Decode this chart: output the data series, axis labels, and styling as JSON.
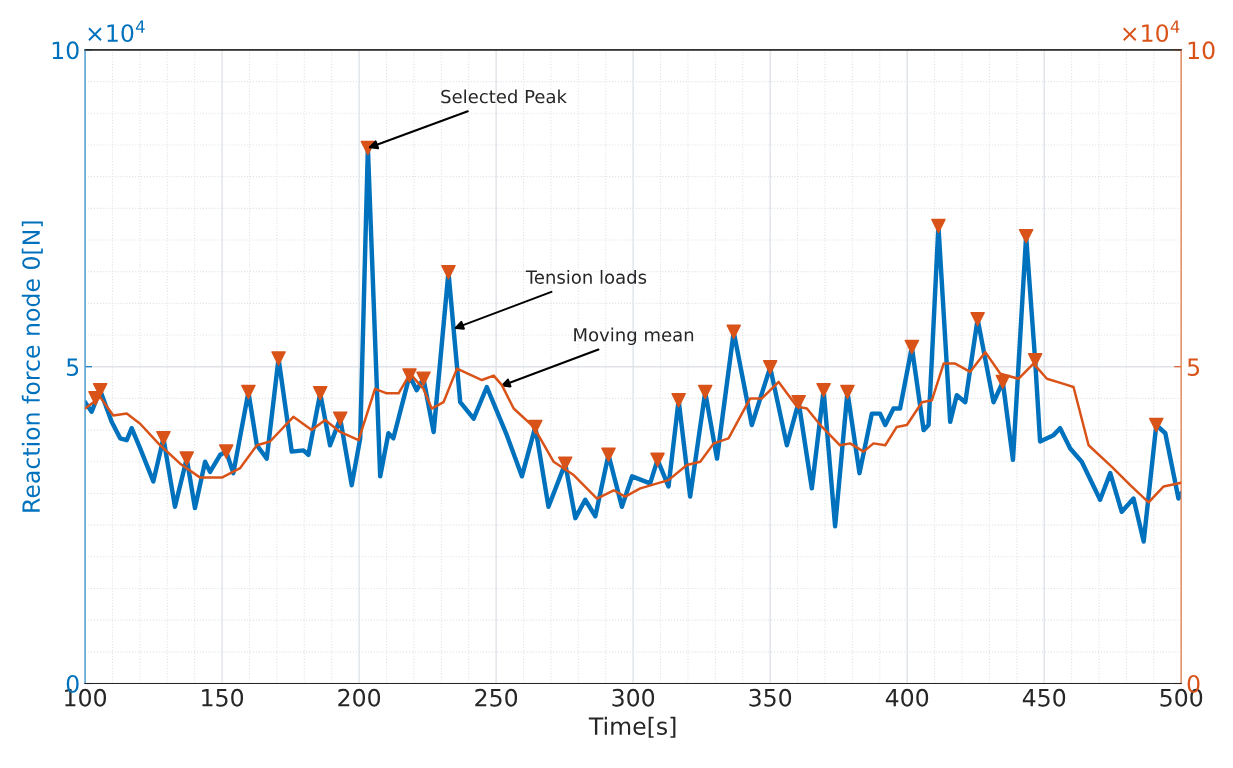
{
  "chart_data": {
    "type": "line",
    "xlabel": "Time[s]",
    "ylabel": "Reaction force node 0[N]",
    "xlim": [
      100,
      500
    ],
    "xticks": [
      100,
      150,
      200,
      250,
      300,
      350,
      400,
      450,
      500
    ],
    "ylim": [
      0,
      10
    ],
    "yticks": [
      0,
      5,
      10
    ],
    "y2lim": [
      0,
      10
    ],
    "y2ticks": [
      0,
      5,
      10
    ],
    "grid": true,
    "annotations": [
      "×10$^{4}$",
      "×10$^{4}$",
      {
        "text": "Selected Peak",
        "x": 203.2,
        "y": 8.45
      },
      {
        "text": "Tension loads",
        "x": 234.5,
        "y": 5.6
      },
      {
        "text": "Moving mean",
        "x": 251.5,
        "y": 4.69
      }
    ],
    "series": [
      {
        "color": "#0072bd",
        "x": [
          100,
          102.4,
          104.3,
          105.5,
          109.7,
          112.8,
          115.2,
          117.0,
          120.1,
          124.9,
          128.6,
          132.8,
          137.1,
          140.1,
          143.8,
          145.6,
          149.3,
          151.5,
          154.1,
          159.6,
          162.7,
          166.3,
          170.6,
          175.4,
          179.7,
          181.5,
          185.8,
          189.4,
          193.1,
          197.3,
          200.4,
          203.2,
          207.7,
          210.7,
          212.5,
          218.4,
          221.0,
          223.5,
          227.2,
          232.6,
          236.9,
          241.8,
          246.6,
          253.9,
          259.4,
          264.3,
          269.1,
          275.2,
          278.9,
          282.5,
          286.2,
          291.0,
          295.9,
          299.6,
          306.2,
          308.9,
          312.9,
          316.6,
          320.8,
          326.3,
          330.6,
          336.7,
          343.3,
          350.0,
          356.1,
          360.4,
          365.2,
          369.5,
          373.7,
          378.2,
          382.6,
          387.1,
          390.1,
          392.0,
          395.0,
          397.4,
          401.7,
          406.0,
          407.8,
          411.4,
          415.7,
          418.1,
          421.2,
          425.7,
          431.5,
          434.9,
          438.6,
          443.4,
          446.7,
          448.5,
          453.4,
          455.8,
          459.5,
          463.7,
          470.4,
          474.1,
          478.3,
          482.6,
          486.3,
          490.9,
          494.2,
          499.0,
          500
        ],
        "values": [
          4.44,
          4.29,
          4.5,
          4.63,
          4.13,
          3.87,
          3.84,
          4.03,
          3.71,
          3.19,
          3.87,
          2.79,
          3.55,
          2.77,
          3.5,
          3.34,
          3.61,
          3.66,
          3.32,
          4.6,
          3.76,
          3.55,
          5.13,
          3.66,
          3.68,
          3.61,
          4.58,
          3.76,
          4.18,
          3.13,
          3.87,
          8.45,
          3.27,
          3.95,
          3.87,
          4.86,
          4.63,
          4.81,
          3.97,
          6.49,
          4.44,
          4.18,
          4.68,
          3.92,
          3.27,
          4.05,
          2.79,
          3.47,
          2.61,
          2.9,
          2.64,
          3.61,
          2.79,
          3.27,
          3.16,
          3.53,
          3.11,
          4.47,
          2.95,
          4.6,
          3.55,
          5.55,
          4.08,
          4.99,
          3.76,
          4.44,
          3.08,
          4.63,
          2.48,
          4.6,
          3.32,
          4.26,
          4.26,
          4.08,
          4.34,
          4.34,
          5.31,
          4.0,
          4.08,
          7.22,
          4.13,
          4.55,
          4.44,
          5.75,
          4.44,
          4.76,
          3.53,
          7.06,
          5.1,
          3.82,
          3.92,
          4.03,
          3.71,
          3.5,
          2.9,
          3.32,
          2.71,
          2.92,
          2.24,
          4.08,
          3.95,
          2.92,
          3.0
        ]
      },
      {
        "color": "#d95319",
        "axis": "y2",
        "x": [
          100,
          105.5,
          110.3,
          115.2,
          120.1,
          127.4,
          134.7,
          142.0,
          149.9,
          156.6,
          162.7,
          167.5,
          176.0,
          182.7,
          187.6,
          193.1,
          199.8,
          205.8,
          210.1,
          214.4,
          218.6,
          223.5,
          226.5,
          230.8,
          235.7,
          244.8,
          249.1,
          252.1,
          256.4,
          263.7,
          271.0,
          278.3,
          286.8,
          292.9,
          297.1,
          302.6,
          312.9,
          319.6,
          324.5,
          329.4,
          334.8,
          342.7,
          347.0,
          353.1,
          359.8,
          363.4,
          368.3,
          375.5,
          379.2,
          384.1,
          387.7,
          392.0,
          396.2,
          399.9,
          405.4,
          409.0,
          413.3,
          417.5,
          423.0,
          428.5,
          434.0,
          440.6,
          446.1,
          451.0,
          457.1,
          460.7,
          466.2,
          474.7,
          481.4,
          488.1,
          493.6,
          500
        ],
        "values": [
          4.34,
          4.52,
          4.23,
          4.26,
          4.1,
          3.76,
          3.47,
          3.25,
          3.25,
          3.4,
          3.76,
          3.82,
          4.21,
          4.0,
          4.16,
          3.97,
          3.84,
          4.65,
          4.58,
          4.58,
          4.89,
          4.65,
          4.34,
          4.44,
          4.97,
          4.79,
          4.86,
          4.71,
          4.34,
          4.05,
          3.5,
          3.29,
          2.92,
          3.05,
          2.95,
          3.08,
          3.21,
          3.45,
          3.5,
          3.79,
          3.87,
          4.5,
          4.5,
          4.76,
          4.37,
          4.34,
          4.08,
          3.76,
          3.79,
          3.66,
          3.79,
          3.76,
          4.05,
          4.08,
          4.44,
          4.47,
          5.05,
          5.05,
          4.92,
          5.23,
          4.89,
          4.81,
          5.05,
          4.81,
          4.73,
          4.68,
          3.76,
          3.42,
          3.13,
          2.86,
          3.11,
          3.17
        ]
      },
      {
        "type": "scatter",
        "color": "#d95319",
        "marker": "triangle",
        "x": [
          103.8,
          105.5,
          128.6,
          137.1,
          151.5,
          159.6,
          170.6,
          185.8,
          193.1,
          203.2,
          218.4,
          223.5,
          232.6,
          264.3,
          275.2,
          291.0,
          308.9,
          316.6,
          326.3,
          336.7,
          350.0,
          360.4,
          369.5,
          378.2,
          401.7,
          411.4,
          425.7,
          434.9,
          443.4,
          446.7,
          490.9
        ],
        "values": [
          4.5,
          4.63,
          3.87,
          3.55,
          3.66,
          4.6,
          5.13,
          4.58,
          4.18,
          8.45,
          4.86,
          4.81,
          6.49,
          4.05,
          3.47,
          3.61,
          3.53,
          4.47,
          4.6,
          5.55,
          4.99,
          4.44,
          4.63,
          4.6,
          5.31,
          7.22,
          5.75,
          4.76,
          7.06,
          5.1,
          4.08
        ]
      }
    ]
  }
}
